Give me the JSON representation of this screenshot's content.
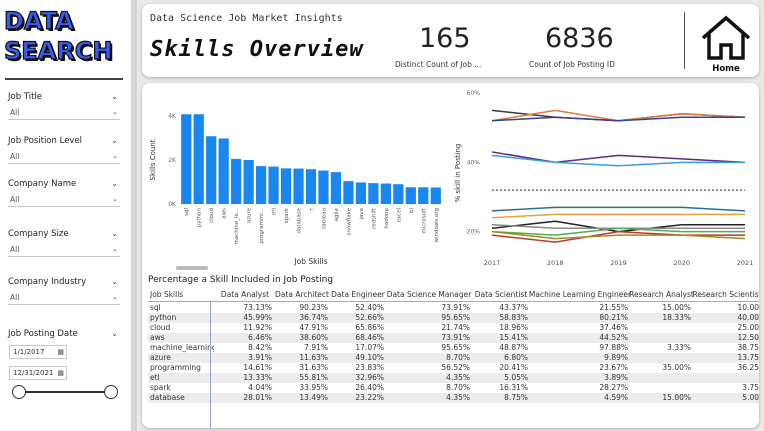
{
  "logo": {
    "line1": "DATA",
    "line2": "SEARCH"
  },
  "filters": [
    {
      "title": "Job Title",
      "value": "All"
    },
    {
      "title": "Job Position Level",
      "value": "All"
    },
    {
      "title": "Company Name",
      "value": "All"
    },
    {
      "title": "Company Size",
      "value": "All"
    },
    {
      "title": "Company Industry",
      "value": "All"
    }
  ],
  "date_filter": {
    "title": "Job Posting Date",
    "start": "1/1/2017",
    "end": "12/31/2021"
  },
  "header": {
    "subtitle": "Data Science Job Market Insights",
    "title": "Skills Overview",
    "kpi1": {
      "value": "165",
      "label": "Distinct Count of Job ..."
    },
    "kpi2": {
      "value": "6836",
      "label": "Count of Job Posting ID"
    },
    "home_label": "Home"
  },
  "chart_data": [
    {
      "type": "bar",
      "title": "",
      "xlabel": "Job Skills",
      "ylabel": "Skills Count",
      "ylim": [
        0,
        4000
      ],
      "yticks": [
        "0K",
        "2K",
        "4K"
      ],
      "categories": [
        "sql",
        "python",
        "cloud",
        "aws",
        "machine_le...",
        "azure",
        "programmi...",
        "etl",
        "spark",
        "database",
        "r",
        "tableau",
        "agile",
        "snowflake",
        "java",
        "redshift",
        "hadoop",
        "excel",
        "bi",
        "microsoft",
        "windows.org"
      ],
      "values": [
        4080,
        4080,
        3080,
        2980,
        2050,
        2000,
        1720,
        1700,
        1620,
        1610,
        1580,
        1520,
        1450,
        1040,
        980,
        950,
        930,
        900,
        760,
        760,
        750
      ],
      "color": "#1a86f0"
    },
    {
      "type": "line",
      "title": "",
      "xlabel": "",
      "ylabel": "% skill in Posting",
      "x": [
        "2017",
        "2018",
        "2019",
        "2020",
        "2021"
      ],
      "ylim": [
        15,
        60
      ],
      "yticks": [
        "20%",
        "40%",
        "60%"
      ],
      "reference_line": 32,
      "series": [
        {
          "color": "#3a3a3a",
          "values": [
            55,
            53,
            52,
            54,
            53
          ]
        },
        {
          "color": "#e07b39",
          "values": [
            52,
            55,
            52,
            54,
            53
          ]
        },
        {
          "color": "#3f3f8f",
          "values": [
            52,
            53,
            52,
            53,
            53
          ]
        },
        {
          "color": "#5a2d82",
          "values": [
            43,
            40,
            42,
            41,
            40
          ]
        },
        {
          "color": "#3b9be0",
          "values": [
            42,
            40,
            39,
            40,
            40
          ]
        },
        {
          "color": "#2e6e8e",
          "values": [
            26,
            27,
            27,
            27,
            26
          ]
        },
        {
          "color": "#e8a040",
          "values": [
            24,
            25,
            25,
            25,
            25
          ]
        },
        {
          "color": "#222222",
          "values": [
            21,
            23,
            20,
            22,
            22
          ]
        },
        {
          "color": "#8a8a8a",
          "values": [
            22,
            21,
            21,
            21,
            21
          ]
        },
        {
          "color": "#4caf50",
          "values": [
            20,
            19,
            21,
            20,
            20
          ]
        },
        {
          "color": "#c0392b",
          "values": [
            19,
            17,
            20,
            19,
            19
          ]
        },
        {
          "color": "#a08a2a",
          "values": [
            20,
            18,
            19,
            19,
            18
          ]
        }
      ]
    }
  ],
  "table": {
    "title": "Percentage a Skill Included in Job Posting",
    "columns": [
      "Job Skills",
      "Data Analyst",
      "Data Architect",
      "Data Engineer",
      "Data Science Manager",
      "Data Scientist",
      "Machine Learning Engineer",
      "Research Analyst",
      "Research Scientist"
    ],
    "rows": [
      [
        "sql",
        "73.13%",
        "90.23%",
        "52.40%",
        "73.91%",
        "43.37%",
        "21.55%",
        "15.00%",
        "10.00"
      ],
      [
        "python",
        "45.99%",
        "36.74%",
        "52.66%",
        "95.65%",
        "58.83%",
        "80.21%",
        "18.33%",
        "40.00"
      ],
      [
        "cloud",
        "11.92%",
        "47.91%",
        "65.86%",
        "21.74%",
        "18.96%",
        "37.46%",
        "",
        "25.00"
      ],
      [
        "aws",
        "6.46%",
        "38.60%",
        "68.46%",
        "73.91%",
        "15.41%",
        "44.52%",
        "",
        "12.50"
      ],
      [
        "machine_learning",
        "8.42%",
        "7.91%",
        "17.07%",
        "95.65%",
        "48.87%",
        "97.88%",
        "3.33%",
        "38.75"
      ],
      [
        "azure",
        "3.91%",
        "11.63%",
        "49.10%",
        "8.70%",
        "6.80%",
        "9.89%",
        "",
        "13.75"
      ],
      [
        "programming",
        "14.61%",
        "31.63%",
        "23.83%",
        "56.52%",
        "20.41%",
        "23.67%",
        "35.00%",
        "36.25"
      ],
      [
        "etl",
        "13.33%",
        "55.81%",
        "32.96%",
        "4.35%",
        "5.05%",
        "3.89%",
        "",
        ""
      ],
      [
        "spark",
        "4.04%",
        "33.95%",
        "26.40%",
        "8.70%",
        "16.31%",
        "28.27%",
        "",
        "3.75"
      ],
      [
        "database",
        "28.01%",
        "13.49%",
        "23.22%",
        "4.35%",
        "8.75%",
        "4.59%",
        "15.00%",
        "5.00"
      ]
    ]
  }
}
